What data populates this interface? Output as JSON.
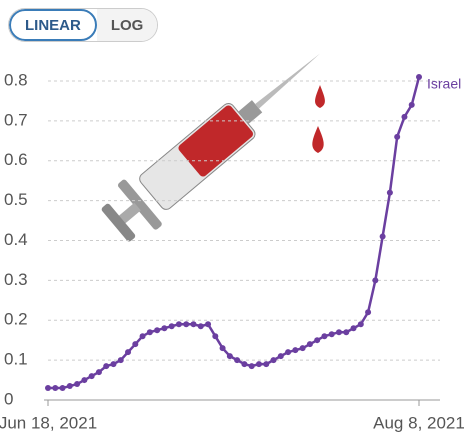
{
  "chart_data": {
    "type": "line",
    "scale_options": [
      "LINEAR",
      "LOG"
    ],
    "log_scale": false,
    "x": [
      "2021-06-18",
      "2021-06-19",
      "2021-06-20",
      "2021-06-21",
      "2021-06-22",
      "2021-06-23",
      "2021-06-24",
      "2021-06-25",
      "2021-06-26",
      "2021-06-27",
      "2021-06-28",
      "2021-06-29",
      "2021-06-30",
      "2021-07-01",
      "2021-07-02",
      "2021-07-03",
      "2021-07-04",
      "2021-07-05",
      "2021-07-06",
      "2021-07-07",
      "2021-07-08",
      "2021-07-09",
      "2021-07-10",
      "2021-07-11",
      "2021-07-12",
      "2021-07-13",
      "2021-07-14",
      "2021-07-15",
      "2021-07-16",
      "2021-07-17",
      "2021-07-18",
      "2021-07-19",
      "2021-07-20",
      "2021-07-21",
      "2021-07-22",
      "2021-07-23",
      "2021-07-24",
      "2021-07-25",
      "2021-07-26",
      "2021-07-27",
      "2021-07-28",
      "2021-07-29",
      "2021-07-30",
      "2021-07-31",
      "2021-08-01",
      "2021-08-02",
      "2021-08-03",
      "2021-08-04",
      "2021-08-05",
      "2021-08-06",
      "2021-08-07",
      "2021-08-08"
    ],
    "series": [
      {
        "name": "Israel",
        "color": "#6b3fa0",
        "values": [
          0.03,
          0.03,
          0.03,
          0.035,
          0.04,
          0.05,
          0.06,
          0.07,
          0.085,
          0.09,
          0.1,
          0.12,
          0.14,
          0.16,
          0.17,
          0.175,
          0.18,
          0.185,
          0.19,
          0.19,
          0.19,
          0.185,
          0.19,
          0.16,
          0.13,
          0.11,
          0.1,
          0.09,
          0.085,
          0.09,
          0.09,
          0.1,
          0.11,
          0.12,
          0.125,
          0.13,
          0.14,
          0.15,
          0.16,
          0.165,
          0.17,
          0.17,
          0.18,
          0.19,
          0.22,
          0.3,
          0.41,
          0.52,
          0.66,
          0.71,
          0.74,
          0.81
        ]
      }
    ],
    "xlim": [
      "2021-06-18",
      "2021-08-08"
    ],
    "xticks": [
      {
        "value": "2021-06-18",
        "label": "Jun 18, 2021"
      },
      {
        "value": "2021-08-08",
        "label": "Aug 8, 2021"
      }
    ],
    "ylim": [
      0,
      0.8
    ],
    "yticks": [
      0,
      0.1,
      0.2,
      0.3,
      0.4,
      0.5,
      0.6,
      0.7,
      0.8
    ],
    "grid": true
  }
}
